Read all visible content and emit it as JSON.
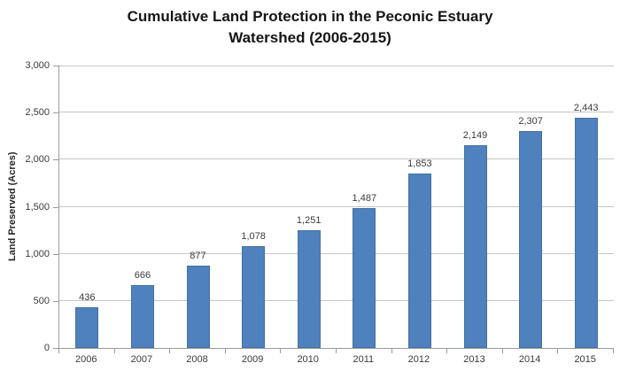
{
  "title": {
    "line1": "Cumulative Land Protection in the Peconic Estuary",
    "line2": "Watershed (2006-2015)"
  },
  "chart_data": {
    "type": "bar",
    "title": "Cumulative Land Protection in the Peconic Estuary Watershed (2006-2015)",
    "categories": [
      "2006",
      "2007",
      "2008",
      "2009",
      "2010",
      "2011",
      "2012",
      "2013",
      "2014",
      "2015"
    ],
    "values": [
      436,
      666,
      877,
      1078,
      1251,
      1487,
      1853,
      2149,
      2307,
      2443
    ],
    "value_labels": [
      "436",
      "666",
      "877",
      "1,078",
      "1,251",
      "1,487",
      "1,853",
      "2,149",
      "2,307",
      "2,443"
    ],
    "xlabel": "",
    "ylabel": "Land Preserved (Acres)",
    "ylim": [
      0,
      3000
    ],
    "ytick_interval": 500,
    "ytick_labels": [
      "0",
      "500",
      "1,000",
      "1,500",
      "2,000",
      "2,500",
      "3,000"
    ],
    "grid": true,
    "legend": false,
    "colors": {
      "bar_fill": "#4e81bd",
      "bar_border": "#44719f",
      "gridline": "#c6c6c6",
      "axis": "#9b9b9b",
      "tick_label": "#3a3a3a",
      "title_text": "#151515"
    }
  }
}
